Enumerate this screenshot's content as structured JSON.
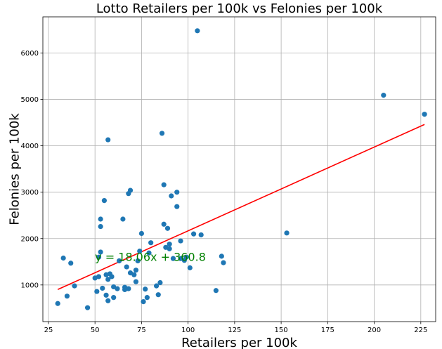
{
  "chart_data": {
    "type": "scatter",
    "title": "Lotto Retailers per 100k vs Felonies per 100k",
    "xlabel": "Retailers per 100k",
    "ylabel": "Felonies per 100k",
    "xlim": [
      22,
      233
    ],
    "ylim": [
      210,
      6780
    ],
    "xticks": [
      25,
      50,
      75,
      100,
      125,
      150,
      175,
      200,
      225
    ],
    "yticks": [
      1000,
      2000,
      3000,
      4000,
      5000,
      6000
    ],
    "grid": true,
    "point_color": "#1f77b4",
    "line_color": "#ff0000",
    "annotation_color": "#008000",
    "fit": {
      "slope": 18.06,
      "intercept": 360.8,
      "x_range": [
        30,
        227
      ]
    },
    "annotation": {
      "text": "y = 18.06x + 360.8",
      "x": 50,
      "y": 1520
    },
    "points": [
      [
        30,
        600
      ],
      [
        33,
        1580
      ],
      [
        35,
        760
      ],
      [
        37,
        1470
      ],
      [
        39,
        980
      ],
      [
        46,
        510
      ],
      [
        50,
        1150
      ],
      [
        51,
        860
      ],
      [
        52,
        1180
      ],
      [
        52,
        1600
      ],
      [
        53,
        2260
      ],
      [
        53,
        2420
      ],
      [
        53,
        1710
      ],
      [
        54,
        930
      ],
      [
        55,
        2820
      ],
      [
        56,
        780
      ],
      [
        56,
        1220
      ],
      [
        57,
        660
      ],
      [
        57,
        1120
      ],
      [
        57,
        4130
      ],
      [
        58,
        1240
      ],
      [
        59,
        1180
      ],
      [
        60,
        730
      ],
      [
        60,
        960
      ],
      [
        62,
        920
      ],
      [
        63,
        1520
      ],
      [
        65,
        2420
      ],
      [
        66,
        950
      ],
      [
        66,
        900
      ],
      [
        67,
        1390
      ],
      [
        68,
        2970
      ],
      [
        68,
        920
      ],
      [
        69,
        1260
      ],
      [
        69,
        3040
      ],
      [
        71,
        1220
      ],
      [
        72,
        1320
      ],
      [
        72,
        1070
      ],
      [
        73,
        1520
      ],
      [
        74,
        1730
      ],
      [
        75,
        2110
      ],
      [
        76,
        640
      ],
      [
        77,
        910
      ],
      [
        78,
        730
      ],
      [
        79,
        1690
      ],
      [
        80,
        1910
      ],
      [
        83,
        980
      ],
      [
        84,
        790
      ],
      [
        85,
        1050
      ],
      [
        86,
        4270
      ],
      [
        87,
        2310
      ],
      [
        87,
        3160
      ],
      [
        88,
        1810
      ],
      [
        89,
        2220
      ],
      [
        90,
        1880
      ],
      [
        90,
        1780
      ],
      [
        91,
        2920
      ],
      [
        92,
        1570
      ],
      [
        94,
        2690
      ],
      [
        94,
        3000
      ],
      [
        96,
        1950
      ],
      [
        96,
        1570
      ],
      [
        98,
        1530
      ],
      [
        99,
        1600
      ],
      [
        101,
        1370
      ],
      [
        103,
        2100
      ],
      [
        105,
        6480
      ],
      [
        107,
        2080
      ],
      [
        115,
        880
      ],
      [
        118,
        1620
      ],
      [
        119,
        1480
      ],
      [
        153,
        2120
      ],
      [
        205,
        5090
      ],
      [
        227,
        4680
      ]
    ]
  }
}
